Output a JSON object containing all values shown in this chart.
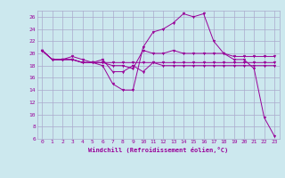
{
  "xlabel": "Windchill (Refroidissement éolien,°C)",
  "background_color": "#cce8ee",
  "grid_color": "#aaaacc",
  "line_color": "#990099",
  "x_ticks": [
    0,
    1,
    2,
    3,
    4,
    5,
    6,
    7,
    8,
    9,
    10,
    11,
    12,
    13,
    14,
    15,
    16,
    17,
    18,
    19,
    20,
    21,
    22,
    23
  ],
  "ylim": [
    6,
    27
  ],
  "xlim": [
    -0.5,
    23.5
  ],
  "yticks": [
    6,
    8,
    10,
    12,
    14,
    16,
    18,
    20,
    22,
    24,
    26
  ],
  "series": {
    "line1": {
      "x": [
        0,
        1,
        2,
        3,
        4,
        5,
        6,
        7,
        8,
        9,
        10,
        11,
        12,
        13,
        14,
        15,
        16,
        17,
        18,
        19,
        20,
        21,
        22,
        23
      ],
      "y": [
        20.5,
        19,
        19,
        19,
        18.5,
        18.5,
        18,
        15,
        14,
        14,
        21,
        23.5,
        24,
        25,
        26.5,
        26,
        26.5,
        22,
        20,
        19,
        19,
        17.5,
        9.5,
        6.5
      ]
    },
    "line2": {
      "x": [
        0,
        1,
        2,
        3,
        4,
        5,
        6,
        7,
        8,
        9,
        10,
        11,
        12,
        13,
        14,
        15,
        16,
        17,
        18,
        19,
        20,
        21,
        22,
        23
      ],
      "y": [
        20.5,
        19,
        19,
        19,
        18.5,
        18.5,
        18.5,
        18,
        18,
        17.5,
        20.5,
        20,
        20,
        20.5,
        20,
        20,
        20,
        20,
        20,
        19.5,
        19.5,
        19.5,
        19.5,
        19.5
      ]
    },
    "line3": {
      "x": [
        0,
        1,
        2,
        3,
        4,
        5,
        6,
        7,
        8,
        9,
        10,
        11,
        12,
        13,
        14,
        15,
        16,
        17,
        18,
        19,
        20,
        21,
        22,
        23
      ],
      "y": [
        20.5,
        19,
        19,
        19,
        18.5,
        18.5,
        18.5,
        18.5,
        18.5,
        18.5,
        18.5,
        18.5,
        18.5,
        18.5,
        18.5,
        18.5,
        18.5,
        18.5,
        18.5,
        18.5,
        18.5,
        18.5,
        18.5,
        18.5
      ]
    },
    "line4": {
      "x": [
        0,
        1,
        2,
        3,
        4,
        5,
        6,
        7,
        8,
        9,
        10,
        11,
        12,
        13,
        14,
        15,
        16,
        17,
        18,
        19,
        20,
        21,
        22,
        23
      ],
      "y": [
        20.5,
        19,
        19,
        19.5,
        19,
        18.5,
        19,
        17,
        17,
        18,
        17,
        18.5,
        18,
        18,
        18,
        18,
        18,
        18,
        18,
        18,
        18,
        18,
        18,
        18
      ]
    }
  }
}
